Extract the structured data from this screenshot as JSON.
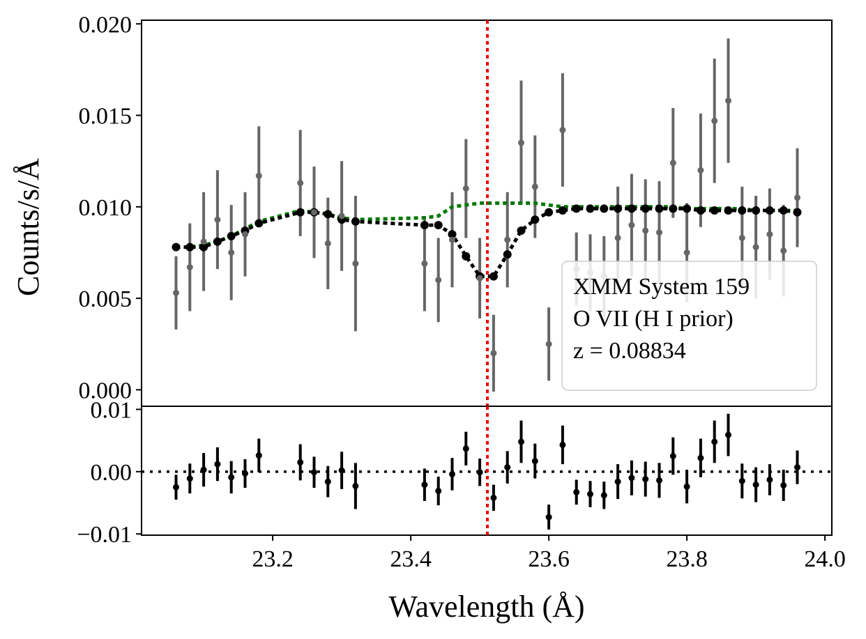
{
  "chart_data": [
    {
      "type": "scatter",
      "panel": "top",
      "title": "",
      "xlabel": "Wavelength (Å)",
      "ylabel": "Counts/s/Å",
      "xlim": [
        23.01,
        24.01
      ],
      "ylim": [
        -0.0009,
        0.0202
      ],
      "yticks": [
        0.0,
        0.005,
        0.01,
        0.015,
        0.02
      ],
      "ytick_labels": [
        "0.000",
        "0.005",
        "0.010",
        "0.015",
        "0.020"
      ],
      "grid": false,
      "legend_placement": "lower-right",
      "legend_lines": [
        "XMM System 159",
        "O VII (H I prior)",
        "z = 0.08834"
      ],
      "reference_line": {
        "x": 23.511,
        "color": "#ee0000",
        "style": "dotted"
      },
      "series": [
        {
          "role": "data",
          "color": "#666666",
          "style": "errorbar",
          "x": [
            23.06,
            23.08,
            23.1,
            23.12,
            23.14,
            23.16,
            23.18,
            23.24,
            23.26,
            23.28,
            23.3,
            23.32,
            23.42,
            23.44,
            23.46,
            23.48,
            23.5,
            23.52,
            23.54,
            23.56,
            23.58,
            23.6,
            23.62,
            23.64,
            23.66,
            23.68,
            23.7,
            23.72,
            23.74,
            23.76,
            23.78,
            23.8,
            23.82,
            23.84,
            23.86,
            23.88,
            23.9,
            23.92,
            23.94,
            23.96
          ],
          "y": [
            0.0053,
            0.0067,
            0.0081,
            0.0093,
            0.0075,
            0.0085,
            0.0117,
            0.0113,
            0.0097,
            0.008,
            0.0095,
            0.0069,
            0.0069,
            0.006,
            0.0082,
            0.011,
            0.0061,
            0.002,
            0.0082,
            0.0135,
            0.0111,
            0.0025,
            0.0142,
            0.0066,
            0.0064,
            0.0062,
            0.0083,
            0.009,
            0.0087,
            0.0086,
            0.0124,
            0.0075,
            0.012,
            0.0147,
            0.0158,
            0.0083,
            0.0078,
            0.0085,
            0.0076,
            0.0105
          ],
          "yerr": [
            0.002,
            0.0024,
            0.0027,
            0.0027,
            0.0026,
            0.0023,
            0.0027,
            0.0029,
            0.0025,
            0.0025,
            0.003,
            0.0037,
            0.0026,
            0.0023,
            0.0026,
            0.0027,
            0.0022,
            0.0021,
            0.0026,
            0.0034,
            0.0028,
            0.002,
            0.0031,
            0.002,
            0.0021,
            0.0022,
            0.0028,
            0.0028,
            0.0028,
            0.0028,
            0.003,
            0.0027,
            0.0031,
            0.0034,
            0.0034,
            0.0028,
            0.0028,
            0.0025,
            0.0025,
            0.0027
          ]
        },
        {
          "role": "continuum-model",
          "color": "#007800",
          "style": "dotted-line",
          "x": [
            23.06,
            23.08,
            23.1,
            23.12,
            23.14,
            23.16,
            23.18,
            23.24,
            23.26,
            23.28,
            23.3,
            23.32,
            23.42,
            23.44,
            23.46,
            23.48,
            23.5,
            23.52,
            23.54,
            23.56,
            23.58,
            23.6,
            23.62,
            23.64,
            23.66,
            23.68,
            23.7,
            23.72,
            23.74,
            23.76,
            23.78,
            23.8,
            23.82,
            23.84,
            23.86,
            23.88,
            23.9,
            23.92,
            23.94,
            23.96
          ],
          "y": [
            0.0078,
            0.0078,
            0.0079,
            0.0081,
            0.0084,
            0.0088,
            0.0092,
            0.0098,
            0.0097,
            0.0096,
            0.0094,
            0.0093,
            0.0094,
            0.0095,
            0.01,
            0.0101,
            0.0102,
            0.0102,
            0.0102,
            0.0102,
            0.0102,
            0.0101,
            0.01,
            0.01,
            0.01,
            0.01,
            0.01,
            0.01,
            0.01,
            0.01,
            0.01,
            0.0099,
            0.0099,
            0.0099,
            0.0099,
            0.0099,
            0.0098,
            0.0098,
            0.0098,
            0.0098
          ]
        },
        {
          "role": "absorption-model",
          "color": "#000000",
          "style": "dotted-line-with-markers",
          "x": [
            23.06,
            23.08,
            23.1,
            23.12,
            23.14,
            23.16,
            23.18,
            23.24,
            23.26,
            23.28,
            23.3,
            23.32,
            23.42,
            23.44,
            23.46,
            23.48,
            23.5,
            23.52,
            23.54,
            23.56,
            23.58,
            23.6,
            23.62,
            23.64,
            23.66,
            23.68,
            23.7,
            23.72,
            23.74,
            23.76,
            23.78,
            23.8,
            23.82,
            23.84,
            23.86,
            23.88,
            23.9,
            23.92,
            23.94,
            23.96
          ],
          "y": [
            0.0078,
            0.0078,
            0.0078,
            0.0081,
            0.0084,
            0.0087,
            0.0091,
            0.0097,
            0.0097,
            0.0096,
            0.0093,
            0.0092,
            0.009,
            0.009,
            0.0085,
            0.0073,
            0.0062,
            0.0062,
            0.0074,
            0.0087,
            0.0093,
            0.0097,
            0.0098,
            0.0099,
            0.0099,
            0.0099,
            0.0099,
            0.0099,
            0.0099,
            0.0099,
            0.0099,
            0.0099,
            0.0098,
            0.0098,
            0.0098,
            0.0098,
            0.0098,
            0.0098,
            0.0098,
            0.0097
          ]
        }
      ]
    },
    {
      "type": "scatter",
      "panel": "bottom",
      "title": "",
      "xlabel": "Wavelength (Å)",
      "ylabel": "",
      "xlim": [
        23.01,
        24.01
      ],
      "ylim": [
        -0.0102,
        0.0105
      ],
      "xticks": [
        23.2,
        23.4,
        23.6,
        23.8,
        24.0
      ],
      "xtick_labels": [
        "23.2",
        "23.4",
        "23.6",
        "23.8",
        "24.0"
      ],
      "yticks": [
        -0.01,
        0.0,
        0.01
      ],
      "ytick_labels": [
        "−0.01",
        "0.00",
        "0.01"
      ],
      "grid": false,
      "reference_line": {
        "x": 23.511,
        "color": "#ee0000",
        "style": "dotted"
      },
      "zero_line": {
        "y": 0.0,
        "color": "#000000",
        "style": "dotted"
      },
      "series": [
        {
          "role": "residuals",
          "color": "#000000",
          "style": "errorbar",
          "x": [
            23.06,
            23.08,
            23.1,
            23.12,
            23.14,
            23.16,
            23.18,
            23.24,
            23.26,
            23.28,
            23.3,
            23.32,
            23.42,
            23.44,
            23.46,
            23.48,
            23.5,
            23.52,
            23.54,
            23.56,
            23.58,
            23.6,
            23.62,
            23.64,
            23.66,
            23.68,
            23.7,
            23.72,
            23.74,
            23.76,
            23.78,
            23.8,
            23.82,
            23.84,
            23.86,
            23.88,
            23.9,
            23.92,
            23.94,
            23.96
          ],
          "y": [
            -0.0025,
            -0.0011,
            0.0003,
            0.0012,
            -0.0009,
            -0.0003,
            0.0026,
            0.0015,
            -0.0001,
            -0.0016,
            0.0002,
            -0.0023,
            -0.0021,
            -0.0031,
            -0.0004,
            0.0037,
            -0.0001,
            -0.0042,
            0.0007,
            0.0048,
            0.0017,
            -0.0073,
            0.0043,
            -0.0033,
            -0.0036,
            -0.0038,
            -0.0016,
            -0.001,
            -0.0012,
            -0.0014,
            0.0025,
            -0.0024,
            0.0022,
            0.0048,
            0.0059,
            -0.0015,
            -0.0021,
            -0.0013,
            -0.0022,
            0.0007
          ]
        }
      ]
    }
  ]
}
